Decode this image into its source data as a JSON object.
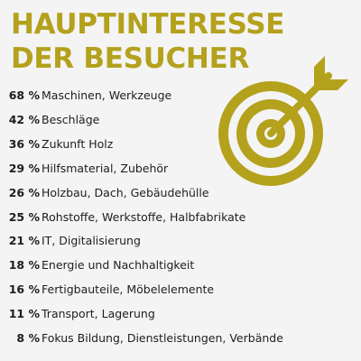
{
  "header": {
    "title_line1": "HAUPTINTERESSE",
    "title_line2": "DER BESUCHER"
  },
  "icon": {
    "name": "target-arrow-icon",
    "color": "#b4a11c"
  },
  "colors": {
    "accent": "#b4a11c",
    "text": "#1e1e1e",
    "background": "#f4f4f4"
  },
  "chart_data": {
    "type": "table",
    "title": "HAUPTINTERESSE DER BESUCHER",
    "unit": "%",
    "categories": [
      "Maschinen, Werkzeuge",
      "Beschläge",
      "Zukunft Holz",
      "Hilfsmaterial, Zubehör",
      "Holzbau, Dach, Gebäudehülle",
      "Rohstoffe, Werkstoffe, Halbfabrikate",
      "IT, Digitalisierung",
      "Energie und Nachhaltigkeit",
      "Fertigbauteile, Möbelelemente",
      "Transport, Lagerung",
      "Fokus Bildung, Dienstleistungen, Verbände"
    ],
    "values": [
      68,
      42,
      36,
      29,
      26,
      25,
      21,
      18,
      16,
      11,
      8
    ],
    "value_labels": [
      "68 %",
      "42 %",
      "36 %",
      "29 %",
      "26 %",
      "25 %",
      "21 %",
      "18 %",
      "16 %",
      "11 %",
      "8 %"
    ]
  }
}
